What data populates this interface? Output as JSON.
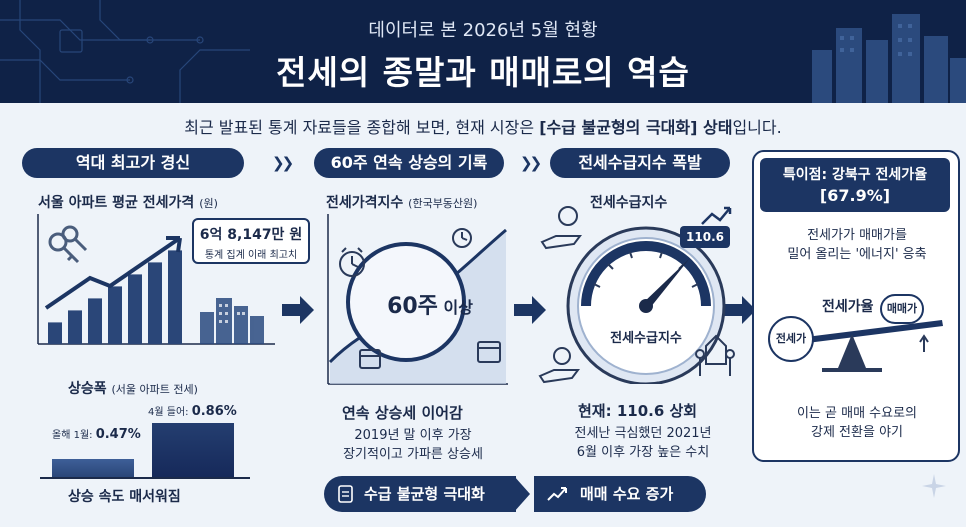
{
  "header": {
    "subtitle": "데이터로 본 2026년 5월 현황",
    "title": "전세의 종말과 매매로의 역습"
  },
  "intro": {
    "prefix": "최근 발표된 통계 자료들을 종합해 보면, 현재 시장은 ",
    "highlight": "[수급 불균형의 극대화] 상태",
    "suffix": "입니다."
  },
  "section1": {
    "pill": "역대 최고가 경신",
    "label": "서울 아파트 평균 전세가격",
    "label_unit": "(원)",
    "callout_value": "6억 8,147만 원",
    "callout_note": "통계 집계 이래 최고치",
    "bars": [
      0.18,
      0.28,
      0.38,
      0.48,
      0.58,
      0.68,
      0.78
    ],
    "rise_label": "상승폭",
    "rise_label_small": "(서울 아파트 전세)",
    "jan_label": "올해 1월: ",
    "jan_value": "0.47%",
    "apr_label": "4월 들어: ",
    "apr_value": "0.86%",
    "jan_pct": 0.47,
    "apr_pct": 0.86,
    "speed_label": "상승 속도 매서워짐"
  },
  "section2": {
    "pill": "60주 연속 상승의 기록",
    "label": "전세가격지수",
    "label_small": "(한국부동산원)",
    "badge_num": "60주",
    "badge_suffix": " 이상",
    "caption": "연속 상승세 이어감",
    "desc_line1": "2019년 말 이후 가장",
    "desc_line2": "장기적이고 가파른 상승세"
  },
  "section3": {
    "pill": "전세수급지수 폭발",
    "label": "전세수급지수",
    "gauge_value": "110.6",
    "gauge_label": "전세수급지수",
    "current": "현재: 110.6 상회",
    "desc_line1": "전세난 극심했던 2021년",
    "desc_line2": "6월 이후 가장 높은 수치"
  },
  "section4": {
    "title_line1": "특이점: 강북구 전세가율",
    "title_line2": "[67.9%]",
    "desc_line1": "전세가가 매매가를",
    "desc_line2": "밀어 올리는 '에너지' 응축",
    "balance_label": "전세가율",
    "left_ball": "전세가",
    "right_ball": "매매가",
    "foot_line1": "이는 곧 매매 수요로의",
    "foot_line2": "강제 전환을 야기"
  },
  "bottom": {
    "left": "수급 불균형 극대화",
    "right": "매매 수요 증가"
  },
  "colors": {
    "navy": "#1c3563",
    "header": "#0f2247",
    "accent": "#2d4f8a"
  }
}
